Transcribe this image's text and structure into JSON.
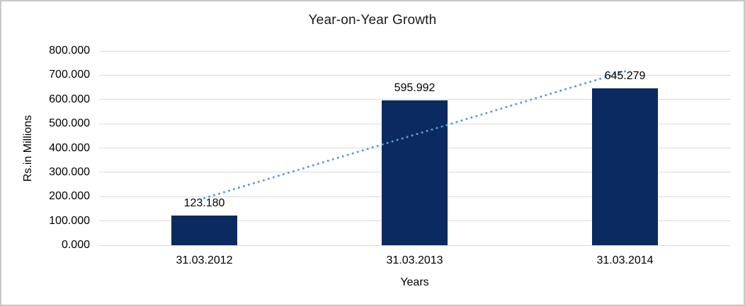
{
  "frame": {
    "background_color": "#ffffff",
    "border_color": "#c8c8c8"
  },
  "chart_data": {
    "type": "bar",
    "title": "Year-on-Year Growth",
    "xlabel": "Years",
    "ylabel": "Rs.in Millions",
    "categories": [
      "31.03.2012",
      "31.03.2013",
      "31.03.2014"
    ],
    "values": [
      123.18,
      595.992,
      645.279
    ],
    "data_labels": [
      "123.180",
      "595.992",
      "645.279"
    ],
    "ylim": [
      0,
      800
    ],
    "ytick_step": 100,
    "ytick_labels": [
      "800.000",
      "700.000",
      "600.000",
      "500.000",
      "400.000",
      "300.000",
      "200.000",
      "100.000",
      "0.000"
    ],
    "grid": true,
    "legend": "none",
    "bar_color": "#0b2a60",
    "gridline_color": "#d9d9d9",
    "label_color": "#000000",
    "trendline": {
      "type": "linear",
      "style": "dotted",
      "color": "#5b9bd5",
      "start_value": 193.8,
      "end_value": 715.9
    }
  }
}
